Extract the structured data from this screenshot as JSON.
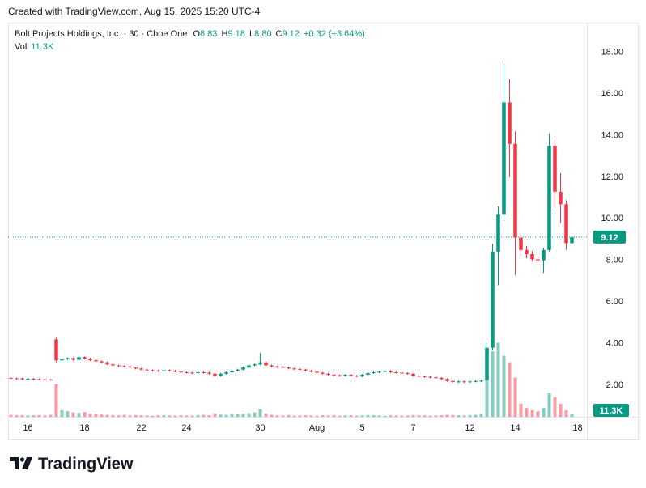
{
  "created_note": "Created with TradingView.com, Aug 15, 2025 15:20 UTC-4",
  "brand": "TradingView",
  "chart_data": {
    "type": "candlestick",
    "title": "Bolt Projects Holdings, Inc. · 30 · Cboe One",
    "ohlc_letters": [
      "O",
      "H",
      "L",
      "C"
    ],
    "last_bar_labels": [
      "8.83",
      "9.18",
      "8.80",
      "9.12"
    ],
    "change_label": "+0.32",
    "change_pct_label": "(+3.64%)",
    "up_color": "#089981",
    "down_color": "#f23645",
    "categories": [
      null,
      null,
      null,
      "16",
      null,
      null,
      null,
      null,
      null,
      null,
      null,
      null,
      null,
      "18",
      null,
      null,
      null,
      null,
      null,
      null,
      null,
      null,
      null,
      "22",
      null,
      null,
      null,
      null,
      null,
      null,
      null,
      "24",
      null,
      null,
      null,
      null,
      null,
      null,
      null,
      null,
      null,
      null,
      null,
      null,
      "30",
      null,
      null,
      null,
      null,
      null,
      null,
      null,
      null,
      null,
      "Aug",
      null,
      null,
      null,
      null,
      null,
      null,
      null,
      "5",
      null,
      null,
      null,
      null,
      null,
      null,
      null,
      null,
      "7",
      null,
      null,
      null,
      null,
      null,
      null,
      null,
      null,
      null,
      "12",
      null,
      null,
      null,
      null,
      null,
      null,
      null,
      "14",
      null,
      null,
      null,
      null,
      null,
      null,
      null,
      null,
      null,
      null,
      "18"
    ],
    "open": [
      2.35,
      2.33,
      2.32,
      2.3,
      2.31,
      2.29,
      2.28,
      2.27,
      4.2,
      3.2,
      3.25,
      3.3,
      3.22,
      3.35,
      3.28,
      3.2,
      3.15,
      3.1,
      3.0,
      2.95,
      2.92,
      2.9,
      2.85,
      2.8,
      2.75,
      2.72,
      2.7,
      2.68,
      2.72,
      2.7,
      2.65,
      2.62,
      2.6,
      2.58,
      2.62,
      2.6,
      2.55,
      2.45,
      2.55,
      2.62,
      2.7,
      2.75,
      2.85,
      2.95,
      3.0,
      3.1,
      2.95,
      2.9,
      2.88,
      2.85,
      2.8,
      2.78,
      2.75,
      2.7,
      2.65,
      2.6,
      2.55,
      2.5,
      2.48,
      2.45,
      2.5,
      2.45,
      2.42,
      2.5,
      2.58,
      2.62,
      2.65,
      2.68,
      2.62,
      2.6,
      2.58,
      2.55,
      2.45,
      2.42,
      2.4,
      2.38,
      2.35,
      2.3,
      2.2,
      2.15,
      2.18,
      2.15,
      2.18,
      2.2,
      2.25,
      3.8,
      8.4,
      10.2,
      15.6,
      13.6,
      9.1,
      8.5,
      8.3,
      8.05,
      8.0,
      8.5,
      13.5,
      11.3,
      10.7,
      8.83,
      null
    ],
    "high": [
      2.39,
      2.37,
      2.36,
      2.35,
      2.35,
      2.33,
      2.32,
      2.31,
      4.32,
      3.29,
      3.34,
      3.34,
      3.39,
      3.39,
      3.32,
      3.24,
      3.19,
      3.14,
      3.04,
      2.99,
      2.96,
      2.94,
      2.89,
      2.84,
      2.79,
      2.76,
      2.74,
      2.76,
      2.76,
      2.74,
      2.69,
      2.66,
      2.64,
      2.66,
      2.66,
      2.64,
      2.59,
      2.59,
      2.66,
      2.74,
      2.79,
      2.89,
      2.99,
      3.04,
      3.55,
      3.14,
      2.99,
      2.94,
      2.92,
      2.89,
      2.84,
      2.82,
      2.79,
      2.74,
      2.69,
      2.64,
      2.59,
      2.54,
      2.52,
      2.54,
      2.54,
      2.49,
      2.54,
      2.62,
      2.66,
      2.69,
      2.72,
      2.72,
      2.66,
      2.64,
      2.62,
      2.59,
      2.49,
      2.46,
      2.44,
      2.42,
      2.39,
      2.34,
      2.24,
      2.22,
      2.22,
      2.22,
      2.24,
      2.26,
      4.1,
      8.8,
      10.6,
      17.5,
      16.7,
      14.2,
      9.3,
      8.7,
      8.45,
      8.2,
      8.6,
      14.1,
      13.8,
      12.2,
      10.9,
      9.18,
      null
    ],
    "low": [
      2.29,
      2.28,
      2.26,
      2.26,
      2.25,
      2.24,
      2.23,
      2.22,
      3.1,
      3.16,
      3.21,
      3.18,
      3.18,
      3.24,
      3.16,
      3.11,
      3.06,
      2.96,
      2.91,
      2.88,
      2.86,
      2.81,
      2.76,
      2.71,
      2.68,
      2.66,
      2.64,
      2.64,
      2.66,
      2.61,
      2.58,
      2.56,
      2.54,
      2.54,
      2.56,
      2.51,
      2.38,
      2.41,
      2.51,
      2.58,
      2.66,
      2.71,
      2.81,
      2.91,
      2.95,
      2.91,
      2.86,
      2.84,
      2.81,
      2.76,
      2.74,
      2.71,
      2.66,
      2.61,
      2.56,
      2.51,
      2.46,
      2.44,
      2.41,
      2.41,
      2.41,
      2.38,
      2.38,
      2.46,
      2.54,
      2.58,
      2.61,
      2.58,
      2.56,
      2.54,
      2.51,
      2.41,
      2.38,
      2.36,
      2.34,
      2.31,
      2.26,
      2.16,
      2.11,
      2.11,
      2.11,
      2.11,
      2.14,
      2.16,
      2.2,
      3.7,
      6.8,
      9.9,
      12.0,
      7.3,
      8.2,
      8.1,
      7.95,
      7.9,
      7.4,
      8.4,
      10.5,
      9.8,
      8.5,
      8.8,
      null
    ],
    "close": [
      2.33,
      2.32,
      2.3,
      2.31,
      2.29,
      2.28,
      2.27,
      2.26,
      3.2,
      3.25,
      3.3,
      3.22,
      3.35,
      3.28,
      3.2,
      3.15,
      3.1,
      3.0,
      2.95,
      2.92,
      2.9,
      2.85,
      2.8,
      2.75,
      2.72,
      2.7,
      2.68,
      2.72,
      2.7,
      2.65,
      2.62,
      2.6,
      2.58,
      2.62,
      2.6,
      2.55,
      2.45,
      2.55,
      2.62,
      2.7,
      2.75,
      2.85,
      2.95,
      3.0,
      3.1,
      2.95,
      2.9,
      2.88,
      2.85,
      2.8,
      2.78,
      2.75,
      2.7,
      2.65,
      2.6,
      2.55,
      2.5,
      2.48,
      2.45,
      2.5,
      2.45,
      2.42,
      2.5,
      2.58,
      2.62,
      2.65,
      2.68,
      2.62,
      2.6,
      2.58,
      2.55,
      2.45,
      2.42,
      2.4,
      2.38,
      2.35,
      2.3,
      2.2,
      2.15,
      2.18,
      2.15,
      2.18,
      2.2,
      2.22,
      3.8,
      8.4,
      10.2,
      15.6,
      13.6,
      9.1,
      8.5,
      8.3,
      8.05,
      8.0,
      8.5,
      13.5,
      11.3,
      10.7,
      8.83,
      9.12,
      null
    ],
    "volume": {
      "name": "Vol",
      "last_label": "11.3K",
      "values": [
        9000,
        7000,
        8000,
        6000,
        7000,
        8000,
        6000,
        9000,
        150000,
        30000,
        25000,
        20000,
        18000,
        22000,
        15000,
        12000,
        10000,
        9000,
        8000,
        7000,
        9000,
        6000,
        8000,
        7000,
        6000,
        5000,
        7000,
        8000,
        6000,
        5000,
        7000,
        6000,
        5000,
        8000,
        9000,
        7000,
        15000,
        10000,
        9000,
        12000,
        11000,
        14000,
        16000,
        20000,
        35000,
        15000,
        9000,
        7000,
        6000,
        8000,
        5000,
        6000,
        7000,
        6000,
        5000,
        7000,
        6000,
        8000,
        5000,
        6000,
        7000,
        5000,
        6000,
        8000,
        7000,
        6000,
        5000,
        7000,
        6000,
        5000,
        6000,
        8000,
        7000,
        6000,
        5000,
        6000,
        7000,
        9000,
        8000,
        7000,
        6000,
        8000,
        9000,
        12000,
        200000,
        300000,
        340000,
        280000,
        250000,
        180000,
        60000,
        40000,
        30000,
        25000,
        40000,
        110000,
        90000,
        60000,
        30000,
        11300,
        null
      ],
      "ylim": [
        0,
        1800000
      ]
    },
    "ylim": [
      0.48,
      19.35
    ],
    "yticks": [
      {
        "value": 2,
        "label": "2.00"
      },
      {
        "value": 4,
        "label": "4.00"
      },
      {
        "value": 6,
        "label": "6.00"
      },
      {
        "value": 8,
        "label": "8.00"
      },
      {
        "value": 10,
        "label": "10.00"
      },
      {
        "value": 12,
        "label": "12.00"
      },
      {
        "value": 14,
        "label": "14.00"
      },
      {
        "value": 16,
        "label": "16.00"
      },
      {
        "value": 18,
        "label": "18.00"
      }
    ],
    "grid": false
  }
}
